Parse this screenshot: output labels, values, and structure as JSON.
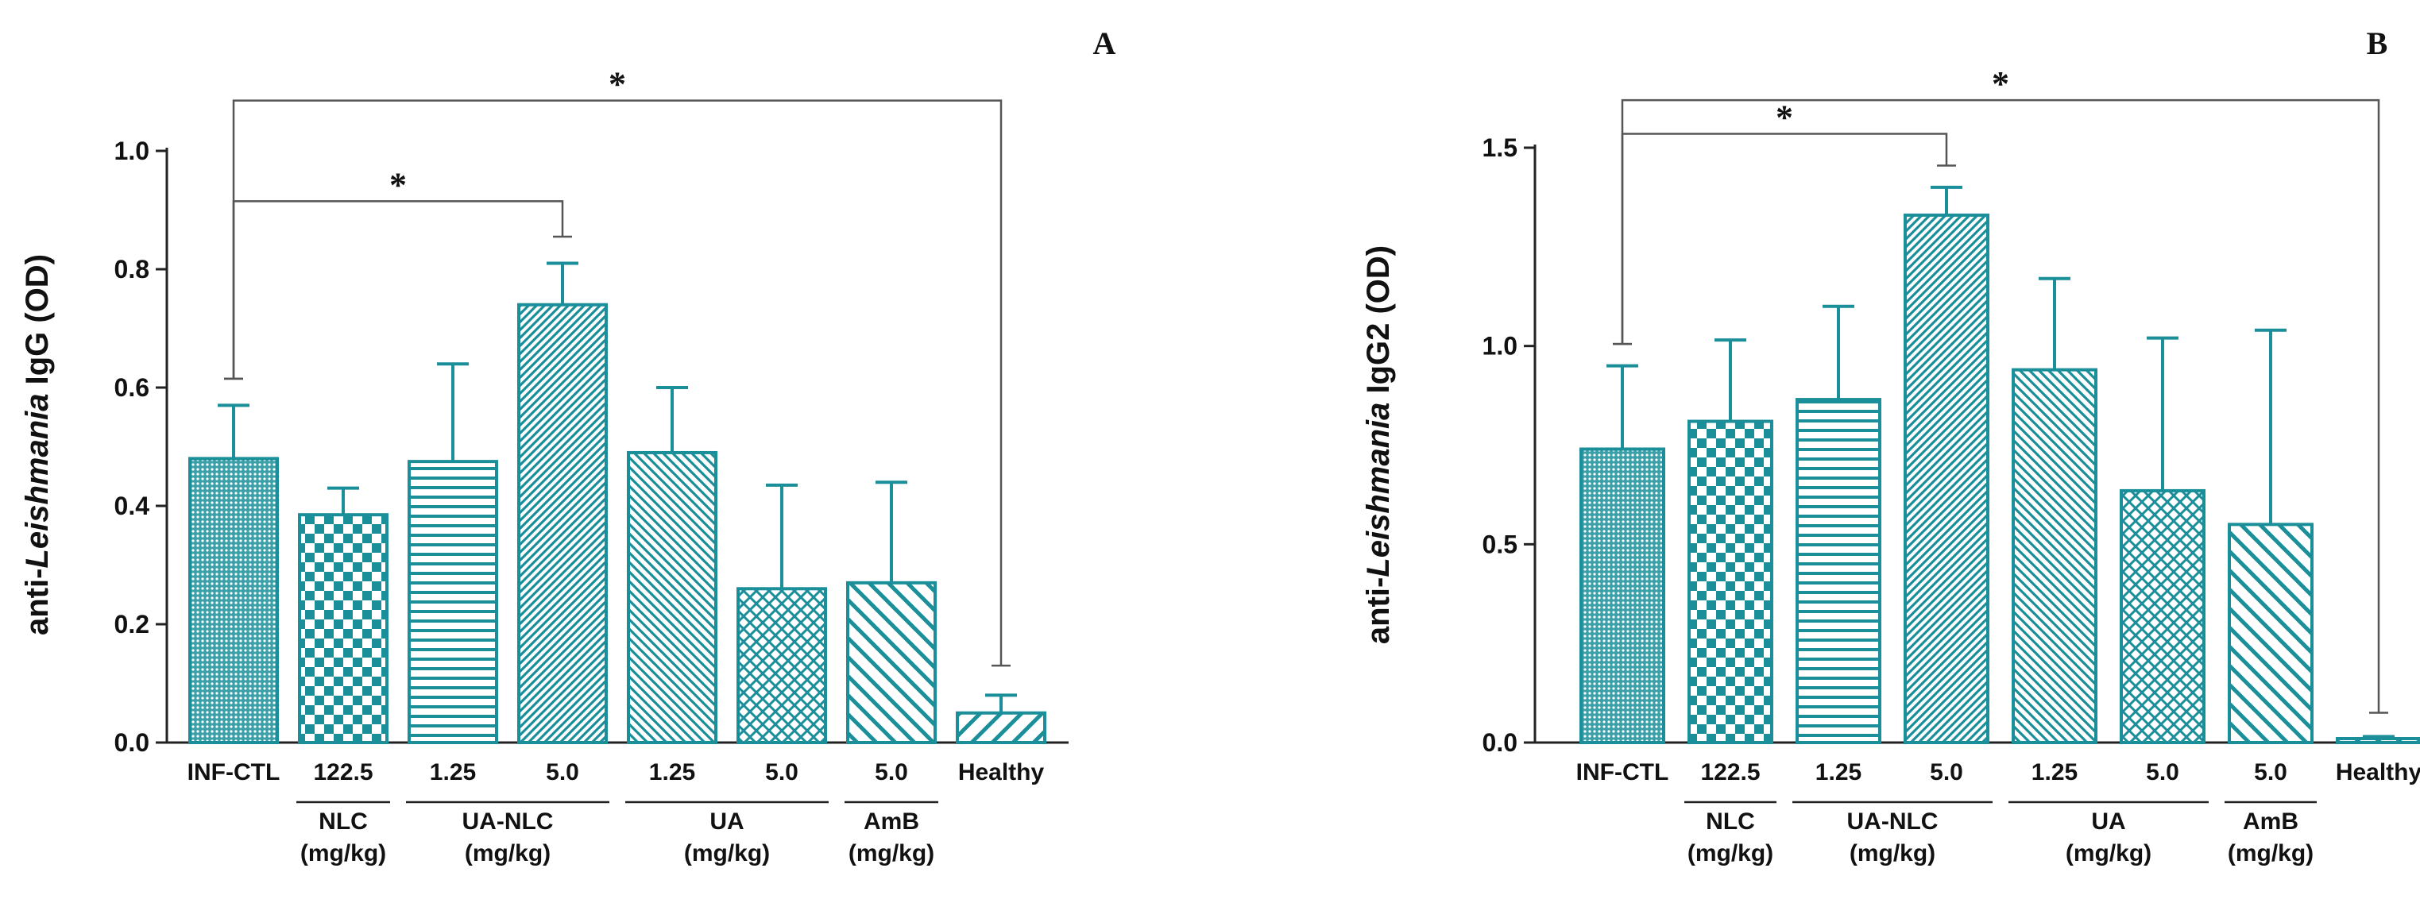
{
  "colors": {
    "bar": "#1a8f9a",
    "text": "#111111",
    "line": "#555555"
  },
  "chart_data": [
    {
      "panel": "A",
      "type": "bar",
      "ylabel_prefix": "anti-",
      "ylabel_italic": "Leishmania",
      "ylabel_suffix": " IgG (OD)",
      "ylim": [
        0,
        1.0
      ],
      "yticks": [
        "0.0",
        "0.2",
        "0.4",
        "0.6",
        "0.8",
        "1.0"
      ],
      "ytick_values": [
        0,
        0.2,
        0.4,
        0.6,
        0.8,
        1.0
      ],
      "categories": [
        "INF-CTL",
        "122.5",
        "1.25",
        "5.0",
        "1.25",
        "5.0",
        "5.0",
        "Healthy"
      ],
      "values": [
        0.48,
        0.385,
        0.475,
        0.74,
        0.49,
        0.26,
        0.27,
        0.05
      ],
      "errors": [
        0.09,
        0.045,
        0.165,
        0.07,
        0.11,
        0.175,
        0.17,
        0.03
      ],
      "patterns": [
        "dots",
        "checker",
        "hlines",
        "diag-dense",
        "back-diag",
        "crosshatch",
        "back-diag-wide",
        "diag-wide"
      ],
      "groups": [
        {
          "name": "NLC",
          "unit": "(mg/kg)",
          "from": 1,
          "to": 1
        },
        {
          "name": "UA-NLC",
          "unit": "(mg/kg)",
          "from": 2,
          "to": 3
        },
        {
          "name": "UA",
          "unit": "(mg/kg)",
          "from": 4,
          "to": 5
        },
        {
          "name": "AmB",
          "unit": "(mg/kg)",
          "from": 6,
          "to": 6
        }
      ],
      "significance": [
        {
          "from": 0,
          "to": 3,
          "label": "*",
          "y": 0.915,
          "y_from": 0.615,
          "y_to": 0.855
        },
        {
          "from": 0,
          "to": 7,
          "label": "*",
          "y": 1.085,
          "y_from": 0.615,
          "y_to": 0.13
        }
      ]
    },
    {
      "panel": "B",
      "type": "bar",
      "ylabel_prefix": "anti-",
      "ylabel_italic": "Leishmania",
      "ylabel_suffix": " IgG2 (OD)",
      "ylim": [
        0,
        1.5
      ],
      "yticks": [
        "0.0",
        "0.5",
        "1.0",
        "1.5"
      ],
      "ytick_values": [
        0,
        0.5,
        1.0,
        1.5
      ],
      "categories": [
        "INF-CTL",
        "122.5",
        "1.25",
        "5.0",
        "1.25",
        "5.0",
        "5.0",
        "Healthy"
      ],
      "values": [
        0.74,
        0.81,
        0.865,
        1.33,
        0.94,
        0.635,
        0.55,
        0.01
      ],
      "errors": [
        0.21,
        0.205,
        0.235,
        0.07,
        0.23,
        0.385,
        0.49,
        0.005
      ],
      "patterns": [
        "dots",
        "checker",
        "hlines",
        "diag-dense",
        "back-diag",
        "crosshatch",
        "back-diag-wide",
        "diag-wide"
      ],
      "groups": [
        {
          "name": "NLC",
          "unit": "(mg/kg)",
          "from": 1,
          "to": 1
        },
        {
          "name": "UA-NLC",
          "unit": "(mg/kg)",
          "from": 2,
          "to": 3
        },
        {
          "name": "UA",
          "unit": "(mg/kg)",
          "from": 4,
          "to": 5
        },
        {
          "name": "AmB",
          "unit": "(mg/kg)",
          "from": 6,
          "to": 6
        }
      ],
      "significance": [
        {
          "from": 0,
          "to": 3,
          "label": "*",
          "y": 1.535,
          "y_from": 1.005,
          "y_to": 1.455
        },
        {
          "from": 0,
          "to": 7,
          "label": "*",
          "y": 1.62,
          "y_from": 1.005,
          "y_to": 0.075
        }
      ]
    }
  ]
}
